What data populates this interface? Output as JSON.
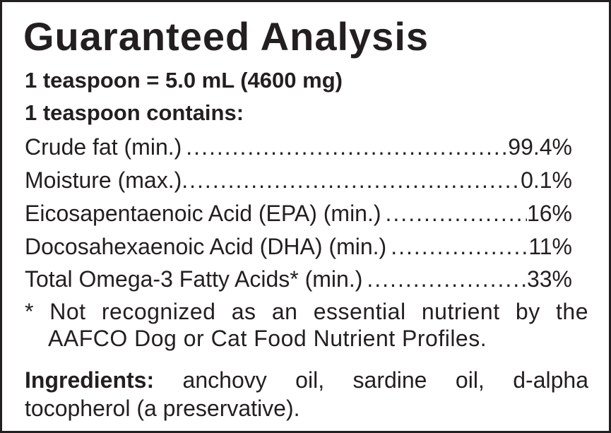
{
  "title": "Guaranteed Analysis",
  "serving": "1 teaspoon = 5.0 mL (4600 mg)",
  "contains": "1 teaspoon contains:",
  "rows": [
    {
      "label": "Crude fat (min.)",
      "value": "99.4%"
    },
    {
      "label": "Moisture (max.)",
      "value": "0.1%"
    },
    {
      "label": "Eicosapentaenoic Acid (EPA) (min.)",
      "value": "16%"
    },
    {
      "label": "Docosahexaenoic Acid (DHA) (min.)",
      "value": "11%"
    },
    {
      "label": "Total Omega-3 Fatty Acids* (min.)",
      "value": "33%"
    }
  ],
  "footnote": {
    "line1": "* Not recognized as an essential nutrient by the",
    "line2": "AAFCO Dog or Cat Food Nutrient Profiles."
  },
  "ingredients": {
    "label": "Ingredients:",
    "text": " anchovy oil, sardine oil, d-alpha tocopherol (a preservative)."
  }
}
